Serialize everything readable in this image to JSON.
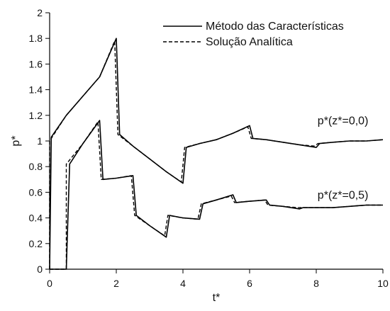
{
  "chart_data": {
    "type": "line",
    "xlabel": "t*",
    "ylabel": "p*",
    "xlim": [
      0,
      10
    ],
    "ylim": [
      0,
      2
    ],
    "x_ticks": [
      "0",
      "2",
      "4",
      "6",
      "8",
      "10"
    ],
    "y_ticks": [
      "0",
      "0.2",
      "0.4",
      "0.6",
      "0.8",
      "1",
      "1.2",
      "1.4",
      "1.6",
      "1.8",
      "2"
    ],
    "grid": false,
    "legend_position": "top-right",
    "annotations": [
      {
        "id": "z0",
        "text": "p*(z*=0,0)",
        "x": 8.8,
        "y": 1.13
      },
      {
        "id": "z05",
        "text": "p*(z*=0,5)",
        "x": 8.8,
        "y": 0.55
      }
    ],
    "series": [
      {
        "name": "Método das Características",
        "style": "solid",
        "color": "#000000",
        "lines": [
          {
            "id": "z0",
            "x": [
              0,
              0.05,
              0.5,
              1.0,
              1.5,
              2.0,
              2.1,
              2.5,
              3.0,
              3.5,
              4.0,
              4.1,
              4.5,
              5.0,
              5.5,
              6.0,
              6.1,
              6.5,
              7.0,
              7.5,
              8.0,
              8.1,
              8.5,
              9.0,
              9.5,
              10.0
            ],
            "y": [
              0,
              1.03,
              1.2,
              1.35,
              1.5,
              1.8,
              1.05,
              0.96,
              0.86,
              0.76,
              0.67,
              0.95,
              0.98,
              1.01,
              1.06,
              1.12,
              1.02,
              1.01,
              0.99,
              0.97,
              0.95,
              0.98,
              0.99,
              1.0,
              1.0,
              1.01
            ]
          },
          {
            "id": "z05",
            "x": [
              0,
              0.5,
              0.5,
              0.6,
              1.0,
              1.5,
              1.6,
              2.0,
              2.5,
              2.6,
              3.0,
              3.5,
              3.6,
              4.0,
              4.5,
              4.6,
              5.0,
              5.5,
              5.6,
              6.0,
              6.5,
              6.6,
              7.0,
              7.5,
              7.6,
              8.0,
              8.5,
              9.0,
              9.5,
              10.0
            ],
            "y": [
              0,
              0,
              0,
              0.82,
              0.98,
              1.16,
              0.7,
              0.71,
              0.73,
              0.42,
              0.34,
              0.25,
              0.42,
              0.4,
              0.39,
              0.51,
              0.54,
              0.58,
              0.52,
              0.53,
              0.54,
              0.5,
              0.49,
              0.47,
              0.48,
              0.48,
              0.48,
              0.49,
              0.5,
              0.5
            ]
          }
        ]
      },
      {
        "name": "Solução Analítica",
        "style": "dashed",
        "color": "#000000",
        "lines": [
          {
            "id": "z0",
            "x": [
              0,
              0,
              0.5,
              1.0,
              1.5,
              1.95,
              2.05,
              2.5,
              3.0,
              3.5,
              3.95,
              4.05,
              4.5,
              5.0,
              5.5,
              5.95,
              6.05,
              6.5,
              7.0,
              7.5,
              7.95,
              8.05,
              8.5,
              9.0,
              9.5,
              10.0
            ],
            "y": [
              0,
              1.0,
              1.2,
              1.35,
              1.5,
              1.78,
              1.05,
              0.96,
              0.86,
              0.76,
              0.68,
              0.95,
              0.98,
              1.01,
              1.06,
              1.11,
              1.02,
              1.01,
              0.99,
              0.97,
              0.96,
              0.98,
              0.99,
              1.0,
              1.0,
              1.01
            ]
          },
          {
            "id": "z05",
            "x": [
              0,
              0.5,
              0.5,
              1.0,
              1.45,
              1.55,
              2.0,
              2.45,
              2.55,
              3.0,
              3.45,
              3.55,
              4.0,
              4.45,
              4.55,
              5.0,
              5.45,
              5.55,
              6.0,
              6.45,
              6.55,
              7.0,
              7.45,
              7.55,
              8.0,
              8.5,
              9.0,
              9.5,
              10.0
            ],
            "y": [
              0,
              0,
              0.82,
              0.98,
              1.15,
              0.7,
              0.71,
              0.73,
              0.42,
              0.34,
              0.26,
              0.42,
              0.4,
              0.39,
              0.51,
              0.54,
              0.57,
              0.52,
              0.53,
              0.54,
              0.5,
              0.49,
              0.48,
              0.48,
              0.48,
              0.48,
              0.49,
              0.5,
              0.5
            ]
          }
        ]
      }
    ]
  }
}
